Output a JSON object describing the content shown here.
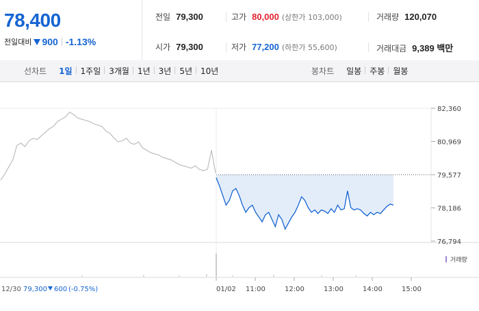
{
  "quote": {
    "price": "78,400",
    "change_label": "전일대비",
    "change": "900",
    "change_pct": "-1.13%",
    "direction": "down"
  },
  "stats": {
    "prev_close": {
      "label": "전일",
      "value": "79,300"
    },
    "high": {
      "label": "고가",
      "value": "80,000",
      "sub": "(상한가 103,000)"
    },
    "volume": {
      "label": "거래량",
      "value": "120,070"
    },
    "open": {
      "label": "시가",
      "value": "79,300"
    },
    "low": {
      "label": "저가",
      "value": "77,200",
      "sub": "(하한가 55,600)"
    },
    "amount": {
      "label": "거래대금",
      "value": "9,389 백만"
    }
  },
  "period_tabs": {
    "line_label": "선차트",
    "line": [
      "1일",
      "1주일",
      "3개월",
      "1년",
      "3년",
      "5년",
      "10년"
    ],
    "line_active": "1일",
    "candle_label": "봉차트",
    "candle": [
      "일봉",
      "주봉",
      "월봉"
    ]
  },
  "colors": {
    "up": "#e0212e",
    "down": "#1464d2",
    "prev_day": "#bdbdbd",
    "fill": "#e3edfa"
  },
  "chart_data": {
    "type": "line",
    "y_ticks": [
      "82,360",
      "80,969",
      "79,577",
      "78,186",
      "76,794"
    ],
    "y_tick_values": [
      82360,
      80969,
      79577,
      78186,
      76794
    ],
    "ylim": [
      76794,
      82360
    ],
    "reference_value": 79577,
    "volume_legend": "거래량",
    "prev_day_caption": {
      "date": "12/30",
      "close": "79,300",
      "change": "600",
      "change_pct": "(-0.75%)"
    },
    "x_ticks": [
      "01/02",
      "11:00",
      "12:00",
      "13:00",
      "14:00",
      "15:00"
    ],
    "series": [
      {
        "values": [
          79350,
          79600,
          79900,
          80200,
          80800,
          80900,
          80750,
          81000,
          81100,
          81050,
          81200,
          81350,
          81500,
          81600,
          81800,
          81900,
          82000,
          82200,
          82100,
          81950,
          81900,
          81850,
          81800,
          81700,
          81650,
          81600,
          81400,
          81300,
          81100,
          80950,
          81000,
          81100,
          80900,
          80850,
          80950,
          80700,
          80600,
          80500,
          80450,
          80400,
          80300,
          80250,
          80200,
          80100,
          80000,
          79950,
          79900,
          79850,
          79950,
          79800,
          79750,
          79800,
          80600,
          79650
        ]
      },
      {
        "values": [
          79450,
          79100,
          78700,
          78300,
          78500,
          78900,
          79000,
          78700,
          78300,
          78000,
          78200,
          78300,
          78000,
          77800,
          77600,
          77900,
          78000,
          77700,
          77400,
          77900,
          77700,
          77300,
          77550,
          77800,
          78000,
          78300,
          78650,
          78500,
          78200,
          78000,
          78100,
          77950,
          78100,
          78050,
          77950,
          78150,
          78000,
          78300,
          78100,
          78150,
          78900,
          78200,
          78100,
          78150,
          78100,
          77950,
          77850,
          78000,
          77900,
          78000,
          77950,
          78100,
          78250,
          78350,
          78300
        ]
      }
    ]
  }
}
